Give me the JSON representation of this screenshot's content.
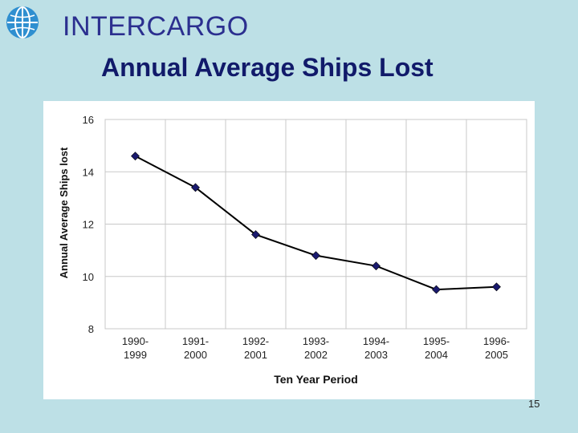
{
  "header": {
    "brand": "INTERCARGO",
    "slide_title": "Annual Average Ships Lost"
  },
  "logo_icon": "globe-icon",
  "colors": {
    "background": "#bde0e6",
    "brand_text": "#2b2f8f",
    "title_text": "#111a6a",
    "marker": "#1a1a6e",
    "line": "#000000",
    "logo": "#2f8fd0"
  },
  "footer": {
    "page_number": "15"
  },
  "chart_data": {
    "type": "line",
    "title": "",
    "xlabel": "Ten Year Period",
    "ylabel": "Annual Average Ships lost",
    "categories": [
      [
        "1990-",
        "1999"
      ],
      [
        "1991-",
        "2000"
      ],
      [
        "1992-",
        "2001"
      ],
      [
        "1993-",
        "2002"
      ],
      [
        "1994-",
        "2003"
      ],
      [
        "1995-",
        "2004"
      ],
      [
        "1996-",
        "2005"
      ]
    ],
    "series": [
      {
        "values": [
          14.6,
          13.4,
          11.6,
          10.8,
          10.4,
          9.5,
          9.6
        ]
      }
    ],
    "ylim": [
      8,
      16
    ],
    "yticks": [
      8,
      10,
      12,
      14,
      16
    ],
    "grid": true,
    "legend": "none"
  }
}
